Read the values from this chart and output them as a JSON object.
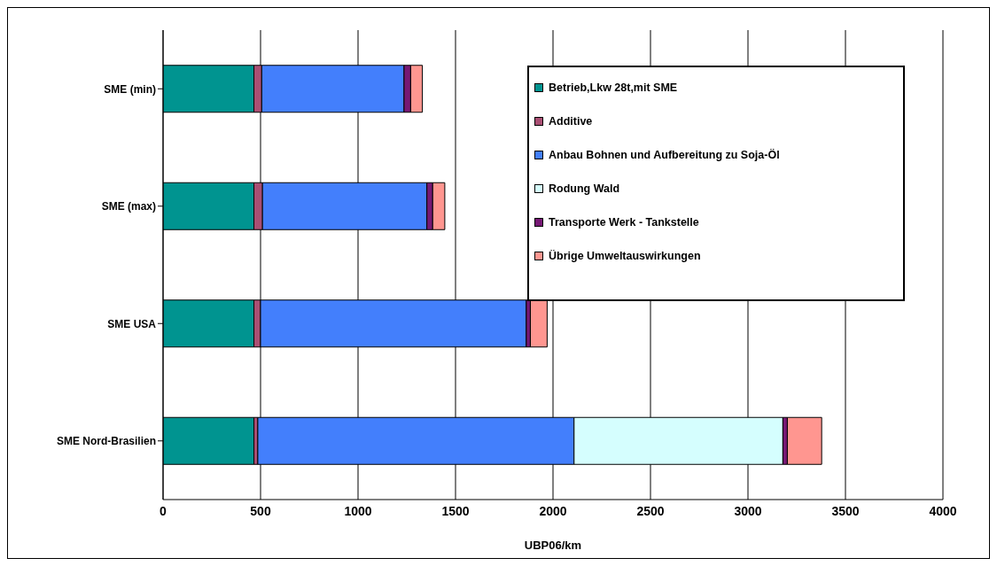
{
  "chart_data": {
    "type": "bar",
    "orientation": "horizontal",
    "stacked": true,
    "xlabel": "UBP06/km",
    "categories": [
      "SME (min)",
      "SME (max)",
      "SME USA",
      "SME Nord-Brasilien"
    ],
    "series": [
      {
        "name": "Betrieb,Lkw 28t,mit SME",
        "color": "#009490",
        "values": [
          466,
          466,
          466,
          466
        ]
      },
      {
        "name": "Additive",
        "color": "#a94f73",
        "values": [
          40,
          44,
          34,
          20
        ]
      },
      {
        "name": "Anbau Bohnen und Aufbereitung zu Soja-Öl",
        "color": "#437ffc",
        "values": [
          730,
          843,
          1363,
          1622
        ]
      },
      {
        "name": "Rodung Wald",
        "color": "#d5fefe",
        "values": [
          0,
          0,
          0,
          1071
        ]
      },
      {
        "name": "Transporte Werk - Tankstelle",
        "color": "#761874",
        "values": [
          34,
          30,
          21,
          23
        ]
      },
      {
        "name": "Übrige Umweltauswirkungen",
        "color": "#ff9690",
        "values": [
          60,
          62,
          86,
          176
        ]
      }
    ],
    "xlim": [
      0,
      4000
    ],
    "xticks": [
      0,
      500,
      1000,
      1500,
      2000,
      2500,
      3000,
      3500,
      4000
    ],
    "grid": "x",
    "legend": "top right"
  }
}
